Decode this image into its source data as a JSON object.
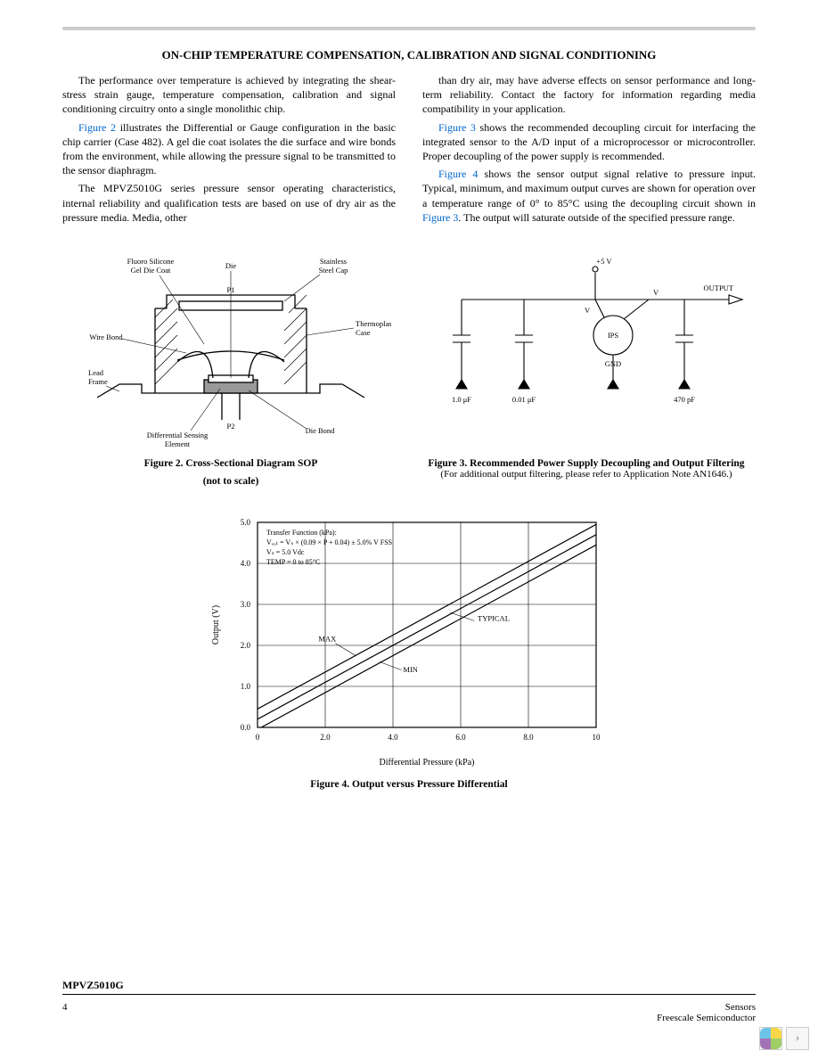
{
  "section_title": "ON-CHIP TEMPERATURE COMPENSATION, CALIBRATION AND SIGNAL CONDITIONING",
  "col1": {
    "p1": "The performance over temperature is achieved by integrating the shear-stress strain gauge, temperature compensation, calibration and signal conditioning circuitry onto a single monolithic chip.",
    "p2a": "Figure 2",
    "p2b": " illustrates the Differential or Gauge configuration in the basic chip carrier (Case 482). A gel die coat isolates the die surface and wire bonds from the environment, while allowing the pressure signal to be transmitted to the sensor diaphragm.",
    "p3": "The MPVZ5010G series pressure sensor operating characteristics, internal reliability and qualification tests are based on use of dry air as the pressure media. Media, other"
  },
  "col2": {
    "p1": "than dry air, may have adverse effects on sensor performance and long-term reliability. Contact the factory for information regarding media compatibility in your application.",
    "p2a": "Figure 3",
    "p2b": " shows the recommended decoupling circuit for interfacing the integrated sensor to the A/D input of a microprocessor or microcontroller. Proper decoupling of the power supply is recommended.",
    "p3a": "Figure 4",
    "p3b": " shows the sensor output signal relative to pressure input. Typical, minimum, and maximum output curves are shown for operation over a temperature range of 0° to 85°C using the decoupling circuit shown in ",
    "p3c": "Figure 3",
    "p3d": ". The output will saturate outside of the specified pressure range."
  },
  "fig2": {
    "caption": "Figure 2. Cross-Sectional Diagram SOP",
    "subcaption": "(not to scale)",
    "labels": {
      "gel": "Fluoro Silicone\nGel Die Coat",
      "die": "Die",
      "cap": "Stainless\nSteel Cap",
      "case": "Thermoplastic\nCase",
      "wire": "Wire Bond",
      "lead": "Lead\nFrame",
      "p1": "P1",
      "p2": "P2",
      "sensing": "Differential Sensing\nElement",
      "bond": "Die Bond"
    }
  },
  "fig3": {
    "caption": "Figure 3. Recommended Power Supply Decoupling and Output Filtering",
    "subcaption": "(For additional output filtering, please refer to Application Note AN1646.)",
    "labels": {
      "v5": "+5 V",
      "output": "OUTPUT",
      "vs": "Vₛ",
      "vout": "Vₒᵤₜ",
      "ips": "IPS",
      "gnd": "GND",
      "c1": "1.0 μF",
      "c2": "0.01 μF",
      "c3": "470 pF"
    }
  },
  "fig4": {
    "caption": "Figure 4. Output versus Pressure Differential",
    "xlabel": "Differential Pressure (kPa)",
    "ylabel": "Output (V)",
    "xlim": [
      0,
      10
    ],
    "ylim": [
      0,
      5.0
    ],
    "xticks": [
      0,
      2.0,
      4.0,
      6.0,
      8.0,
      10
    ],
    "yticks": [
      0,
      1.0,
      2.0,
      3.0,
      4.0,
      5.0
    ],
    "transfer_lines": [
      "Transfer Function (kPa):",
      "Vₒᵤₜ = Vₛ × (0.09 × P + 0.04) ± 5.0% V FSS",
      "Vₛ = 5.0 Vdc",
      "TEMP = 0 to 85°C"
    ],
    "lines": {
      "typical": {
        "x0": 0,
        "y0": 0.2,
        "x1": 10,
        "y1": 4.7,
        "label": "TYPICAL"
      },
      "max": {
        "x0": 0,
        "y0": 0.45,
        "x1": 10,
        "y1": 4.95,
        "label": "MAX"
      },
      "min": {
        "x0": 0,
        "y0": -0.05,
        "x1": 10,
        "y1": 4.45,
        "label": "MIN"
      }
    }
  },
  "footer": {
    "part": "MPVZ5010G",
    "page": "4",
    "right1": "Sensors",
    "right2": "Freescale Semiconductor"
  },
  "nav": {
    "chevron": "›"
  },
  "colors": {
    "link": "#0066cc",
    "logo": [
      "#6cc5e9",
      "#f9d648",
      "#a374b5",
      "#9fce66"
    ]
  }
}
